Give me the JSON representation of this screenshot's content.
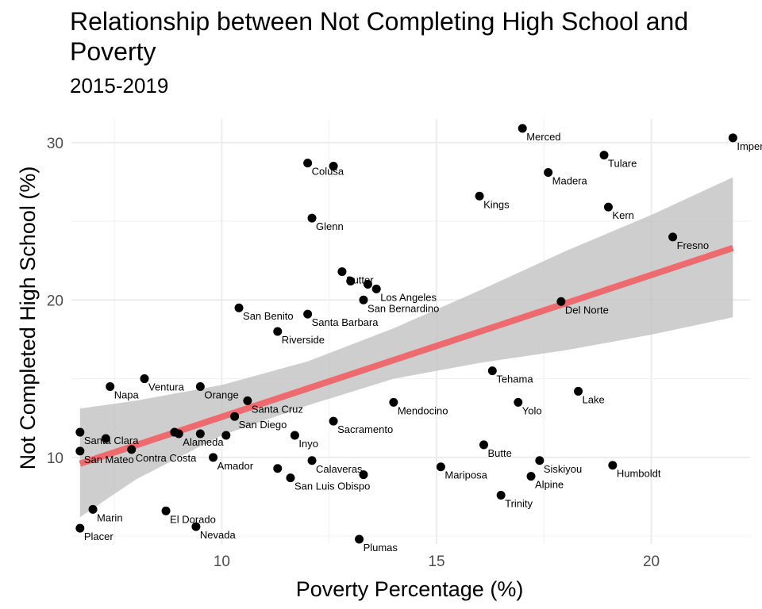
{
  "chart_data": {
    "type": "scatter",
    "title": "Relationship between Not Completing High School and Poverty",
    "subtitle": "2015-2019",
    "xlabel": "Poverty Percentage (%)",
    "ylabel": "Not Completed High School (%)",
    "xlim": [
      6.5,
      22.3
    ],
    "ylim": [
      4.5,
      31.5
    ],
    "x_ticks": [
      10,
      15,
      20
    ],
    "y_ticks": [
      10,
      20,
      30
    ],
    "grid": true,
    "points": [
      {
        "name": "Merced",
        "x": 17.0,
        "y": 30.9
      },
      {
        "name": "Imperial",
        "x": 21.9,
        "y": 30.3
      },
      {
        "name": "Tulare",
        "x": 18.9,
        "y": 29.2
      },
      {
        "name": "Colusa",
        "x": 12.0,
        "y": 28.7
      },
      {
        "name": "",
        "x": 12.6,
        "y": 28.5
      },
      {
        "name": "Madera",
        "x": 17.6,
        "y": 28.1
      },
      {
        "name": "Kings",
        "x": 16.0,
        "y": 26.6
      },
      {
        "name": "Kern",
        "x": 19.0,
        "y": 25.9
      },
      {
        "name": "Glenn",
        "x": 12.1,
        "y": 25.2
      },
      {
        "name": "Fresno",
        "x": 20.5,
        "y": 24.0
      },
      {
        "name": "Sutter",
        "x": 12.8,
        "y": 21.8
      },
      {
        "name": "",
        "x": 13.0,
        "y": 21.2
      },
      {
        "name": "",
        "x": 13.4,
        "y": 21.0
      },
      {
        "name": "Los Angeles",
        "x": 13.6,
        "y": 20.7
      },
      {
        "name": "San Bernardino",
        "x": 13.3,
        "y": 20.0
      },
      {
        "name": "Del Norte",
        "x": 17.9,
        "y": 19.9
      },
      {
        "name": "San Benito",
        "x": 10.4,
        "y": 19.5
      },
      {
        "name": "Santa Barbara",
        "x": 12.0,
        "y": 19.1
      },
      {
        "name": "Riverside",
        "x": 11.3,
        "y": 18.0
      },
      {
        "name": "Tehama",
        "x": 16.3,
        "y": 15.5
      },
      {
        "name": "Ventura",
        "x": 8.2,
        "y": 15.0
      },
      {
        "name": "Napa",
        "x": 7.4,
        "y": 14.5
      },
      {
        "name": "Orange",
        "x": 9.5,
        "y": 14.5
      },
      {
        "name": "Lake",
        "x": 18.3,
        "y": 14.2
      },
      {
        "name": "Santa Cruz",
        "x": 10.6,
        "y": 13.6
      },
      {
        "name": "Mendocino",
        "x": 14.0,
        "y": 13.5
      },
      {
        "name": "Yolo",
        "x": 16.9,
        "y": 13.5
      },
      {
        "name": "San Diego",
        "x": 10.3,
        "y": 12.6
      },
      {
        "name": "Sacramento",
        "x": 12.6,
        "y": 12.3
      },
      {
        "name": "Santa Clara",
        "x": 6.7,
        "y": 11.6
      },
      {
        "name": "",
        "x": 7.3,
        "y": 11.2
      },
      {
        "name": "",
        "x": 8.9,
        "y": 11.6
      },
      {
        "name": "Alameda",
        "x": 9.0,
        "y": 11.5
      },
      {
        "name": "",
        "x": 9.5,
        "y": 11.5
      },
      {
        "name": "",
        "x": 10.1,
        "y": 11.4
      },
      {
        "name": "Inyo",
        "x": 11.7,
        "y": 11.4
      },
      {
        "name": "Butte",
        "x": 16.1,
        "y": 10.8
      },
      {
        "name": "San Mateo",
        "x": 6.7,
        "y": 10.4
      },
      {
        "name": "Contra Costa",
        "x": 7.9,
        "y": 10.5
      },
      {
        "name": "Amador",
        "x": 9.8,
        "y": 10.0
      },
      {
        "name": "Calaveras",
        "x": 12.1,
        "y": 9.8
      },
      {
        "name": "Siskiyou",
        "x": 17.4,
        "y": 9.8
      },
      {
        "name": "Humboldt",
        "x": 19.1,
        "y": 9.5
      },
      {
        "name": "Mariposa",
        "x": 15.1,
        "y": 9.4
      },
      {
        "name": "",
        "x": 11.3,
        "y": 9.3
      },
      {
        "name": "San Luis Obispo",
        "x": 11.6,
        "y": 8.7
      },
      {
        "name": "",
        "x": 13.3,
        "y": 8.9
      },
      {
        "name": "Alpine",
        "x": 17.2,
        "y": 8.8
      },
      {
        "name": "Trinity",
        "x": 16.5,
        "y": 7.6
      },
      {
        "name": "Marin",
        "x": 7.0,
        "y": 6.7
      },
      {
        "name": "El Dorado",
        "x": 8.7,
        "y": 6.6
      },
      {
        "name": "Placer",
        "x": 6.7,
        "y": 5.5
      },
      {
        "name": "Nevada",
        "x": 9.4,
        "y": 5.6
      },
      {
        "name": "Plumas",
        "x": 13.2,
        "y": 4.8
      }
    ],
    "trend": {
      "x0": 6.7,
      "y0": 9.6,
      "x1": 21.9,
      "y1": 23.3
    },
    "confidence_band": [
      {
        "x": 6.7,
        "upper": 13.1,
        "lower": 6.2
      },
      {
        "x": 8.0,
        "upper": 13.6,
        "lower": 8.6
      },
      {
        "x": 10.0,
        "upper": 14.6,
        "lower": 11.4
      },
      {
        "x": 12.0,
        "upper": 16.1,
        "lower": 13.3
      },
      {
        "x": 14.0,
        "upper": 18.2,
        "lower": 15.0
      },
      {
        "x": 16.0,
        "upper": 20.6,
        "lower": 16.0
      },
      {
        "x": 18.0,
        "upper": 23.1,
        "lower": 16.8
      },
      {
        "x": 20.0,
        "upper": 25.4,
        "lower": 17.8
      },
      {
        "x": 21.9,
        "upper": 27.8,
        "lower": 18.9
      }
    ],
    "colors": {
      "points": "#000000",
      "trend": "#ED6B6F",
      "band": "#BEBEBE"
    }
  }
}
